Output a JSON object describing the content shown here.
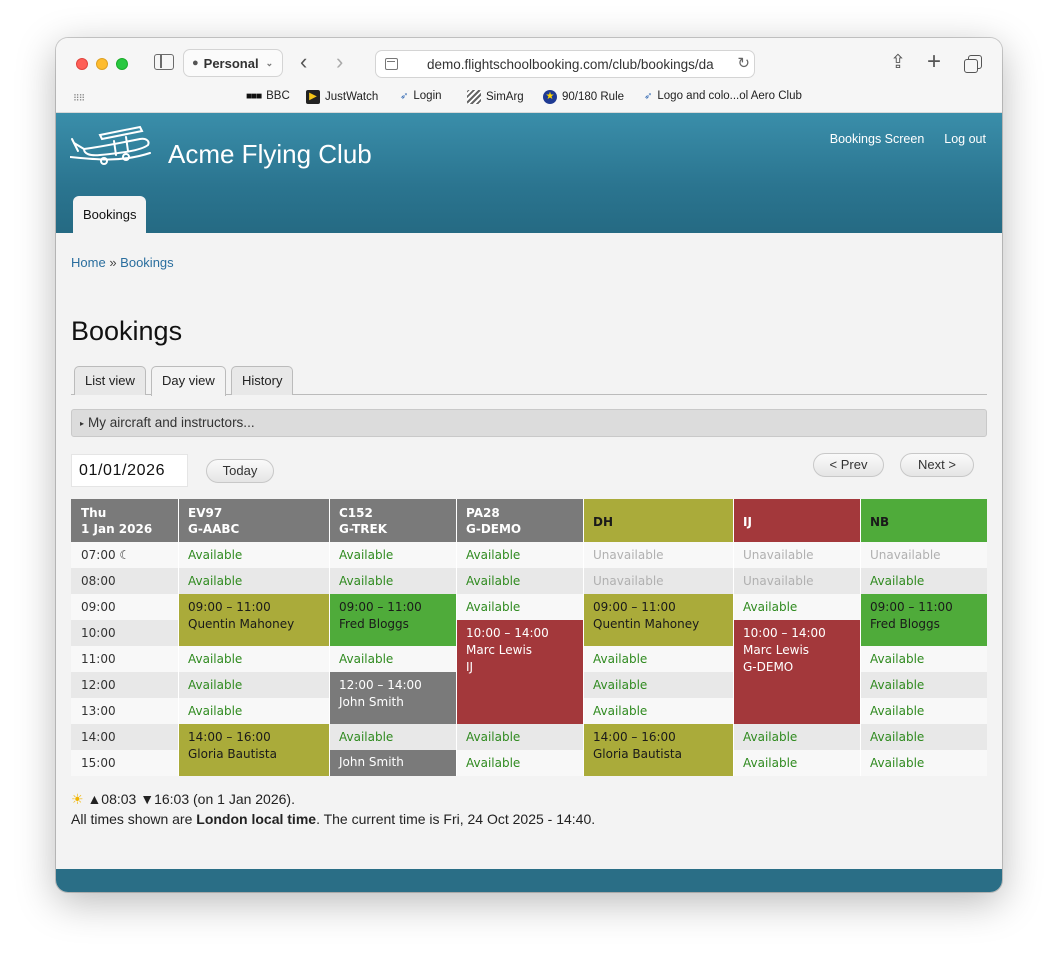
{
  "browser": {
    "profile": "Personal",
    "url": "demo.flightschoolbooking.com/club/bookings/da",
    "bookmarks": [
      "BBC",
      "JustWatch",
      "Login",
      "SimArg",
      "90/180 Rule",
      "Logo and colo...ol Aero Club"
    ]
  },
  "site": {
    "title": "Acme Flying Club",
    "top_links": [
      "Bookings Screen",
      "Log out"
    ],
    "primary_tab": "Bookings"
  },
  "breadcrumb": {
    "home": "Home",
    "sep": "»",
    "current": "Bookings"
  },
  "page_title": "Bookings",
  "view_tabs": [
    "List view",
    "Day view",
    "History"
  ],
  "active_view_tab": "Day view",
  "collapsible_label": "My aircraft and instructors...",
  "date_value": "01/01/2026",
  "buttons": {
    "today": "Today",
    "prev": "< Prev",
    "next": "Next >"
  },
  "grid": {
    "day_header": [
      "Thu",
      "1 Jan 2026"
    ],
    "columns": [
      {
        "line1": "EV97",
        "line2": "G-AABC",
        "color": "#7a7a7a"
      },
      {
        "line1": "C152",
        "line2": "G-TREK",
        "color": "#7a7a7a"
      },
      {
        "line1": "PA28",
        "line2": "G-DEMO",
        "color": "#7a7a7a"
      },
      {
        "line1": "DH",
        "line2": "",
        "color": "#aaab3a"
      },
      {
        "line1": "IJ",
        "line2": "",
        "color": "#a3383b"
      },
      {
        "line1": "NB",
        "line2": "",
        "color": "#4fab3a"
      }
    ],
    "times": [
      "07:00 ☾",
      "08:00",
      "09:00",
      "10:00",
      "11:00",
      "12:00",
      "13:00",
      "14:00",
      "15:00"
    ],
    "available_label": "Available",
    "unavailable_label": "Unavailable",
    "bookings": [
      {
        "col": 0,
        "start": 2,
        "span": 2,
        "time": "09:00 – 11:00",
        "who": "Quentin Mahoney",
        "extra": "",
        "style": "olive"
      },
      {
        "col": 0,
        "start": 7,
        "span": 2,
        "time": "14:00 – 16:00",
        "who": "Gloria Bautista",
        "extra": "",
        "style": "olive"
      },
      {
        "col": 1,
        "start": 2,
        "span": 2,
        "time": "09:00 – 11:00",
        "who": "Fred Bloggs",
        "extra": "",
        "style": "green"
      },
      {
        "col": 1,
        "start": 5,
        "span": 2,
        "time": "12:00 – 14:00",
        "who": "John Smith",
        "extra": "",
        "style": "grey"
      },
      {
        "col": 1,
        "start": 8,
        "span": 1,
        "time": "",
        "who": "John Smith",
        "extra": "",
        "style": "grey"
      },
      {
        "col": 2,
        "start": 3,
        "span": 4,
        "time": "10:00 – 14:00",
        "who": "Marc Lewis",
        "extra": "IJ",
        "style": "red"
      },
      {
        "col": 3,
        "start": 2,
        "span": 2,
        "time": "09:00 – 11:00",
        "who": "Quentin Mahoney",
        "extra": "",
        "style": "olive"
      },
      {
        "col": 3,
        "start": 7,
        "span": 2,
        "time": "14:00 – 16:00",
        "who": "Gloria Bautista",
        "extra": "",
        "style": "olive"
      },
      {
        "col": 4,
        "start": 3,
        "span": 4,
        "time": "10:00 – 14:00",
        "who": "Marc Lewis",
        "extra": "G-DEMO",
        "style": "red"
      },
      {
        "col": 5,
        "start": 2,
        "span": 2,
        "time": "09:00 – 11:00",
        "who": "Fred Bloggs",
        "extra": "",
        "style": "green"
      }
    ],
    "unavailable_slots": [
      [
        3,
        0
      ],
      [
        4,
        0
      ],
      [
        5,
        0
      ],
      [
        3,
        1
      ],
      [
        4,
        1
      ]
    ]
  },
  "sun_info": {
    "icon": "☀",
    "text": "▲08:03 ▼16:03 (on 1 Jan 2026)."
  },
  "time_note": {
    "prefix": "All times shown are ",
    "zone": "London local time",
    "suffix": ". The current time is Fri, 24 Oct 2025 - 14:40."
  }
}
